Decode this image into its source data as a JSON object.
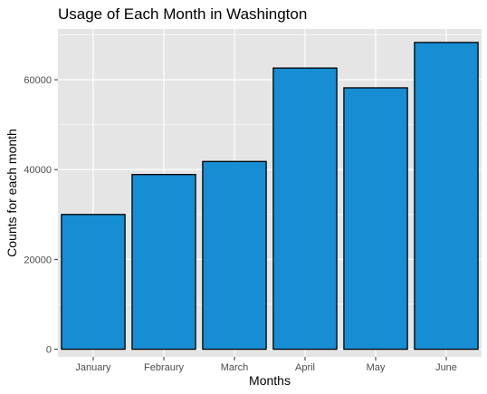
{
  "chart_data": {
    "type": "bar",
    "title": "Usage of Each Month in Washington",
    "xlabel": "Months",
    "ylabel": "Counts for each month",
    "categories": [
      "January",
      "Febraury",
      "March",
      "April",
      "May",
      "June"
    ],
    "values": [
      30000,
      38900,
      41800,
      62600,
      58200,
      68300
    ],
    "ylim": [
      -1700,
      71300
    ],
    "yticks": [
      0,
      20000,
      40000,
      60000
    ],
    "ytick_labels": [
      "0",
      "20000",
      "40000",
      "60000"
    ],
    "grid": true,
    "legend": "none",
    "colors": {
      "bar_fill": "#178dd4",
      "bar_stroke": "#000000",
      "panel_bg": "#e5e5e5",
      "grid": "#ffffff",
      "tick": "#333333"
    }
  }
}
